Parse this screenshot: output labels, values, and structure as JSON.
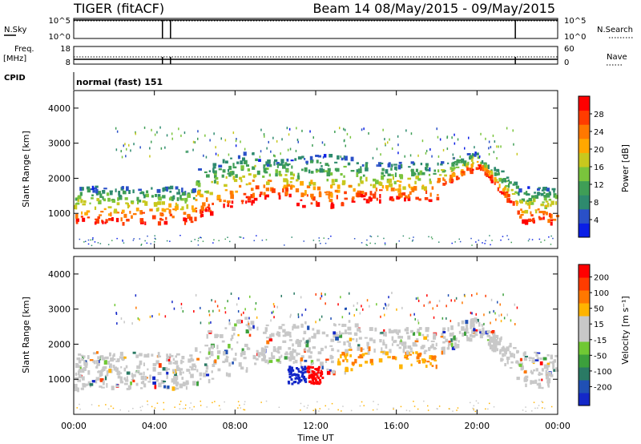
{
  "header": {
    "title": "TIGER (fitACF)",
    "beam_date": "Beam 14 08/May/2015 - 09/May/2015"
  },
  "panels": {
    "nsky": {
      "left_label": "N.Sky",
      "right_label": "N.Search",
      "left_ticks": [
        "10^5",
        "10^0"
      ],
      "right_ticks": [
        "10^5",
        "10^0"
      ]
    },
    "freq": {
      "left_label_line1": "Freq.",
      "left_label_line2": "[MHz]",
      "right_label": "Nave",
      "left_ticks": [
        "18",
        "8"
      ],
      "right_ticks": [
        "60",
        "0"
      ]
    },
    "cpid": {
      "label": "CPID",
      "value": "normal (fast) 151"
    }
  },
  "chart_data": [
    {
      "type": "heatmap",
      "name": "power",
      "ylabel": "Slant Range [km]",
      "ylim": [
        0,
        4500
      ],
      "yticks": [
        1000,
        2000,
        3000,
        4000
      ],
      "xlim": [
        0,
        24
      ],
      "xticks": [
        "00:00",
        "04:00",
        "08:00",
        "12:00",
        "16:00",
        "20:00",
        "00:00"
      ],
      "colorbar": {
        "label": "Power [dB]",
        "ticks": [
          4,
          8,
          12,
          16,
          20,
          24,
          28
        ],
        "colors": [
          "#0a1ee6",
          "#2a50c8",
          "#2e8a6e",
          "#3f9e56",
          "#7ac43c",
          "#c8c81e",
          "#ffa800",
          "#ff7800",
          "#ff3c00",
          "#ff0000"
        ]
      }
    },
    {
      "type": "heatmap",
      "name": "velocity",
      "ylabel": "Slant Range [km]",
      "ylim": [
        0,
        4500
      ],
      "yticks": [
        1000,
        2000,
        3000,
        4000
      ],
      "xlim": [
        0,
        24
      ],
      "xticks": [
        "00:00",
        "04:00",
        "08:00",
        "12:00",
        "16:00",
        "20:00",
        "00:00"
      ],
      "xlabel": "Time UT",
      "colorbar": {
        "label": "Velocity [m s⁻¹]",
        "ticks": [
          200,
          100,
          50,
          15,
          -15,
          -50,
          -100,
          -200
        ],
        "colors": [
          "#1428c8",
          "#2050b4",
          "#2a7a64",
          "#3ca03c",
          "#70c834",
          "#c8c8c8",
          "#c8c8c8",
          "#ffb400",
          "#ff7800",
          "#ff3c00",
          "#ff0000"
        ]
      }
    }
  ]
}
